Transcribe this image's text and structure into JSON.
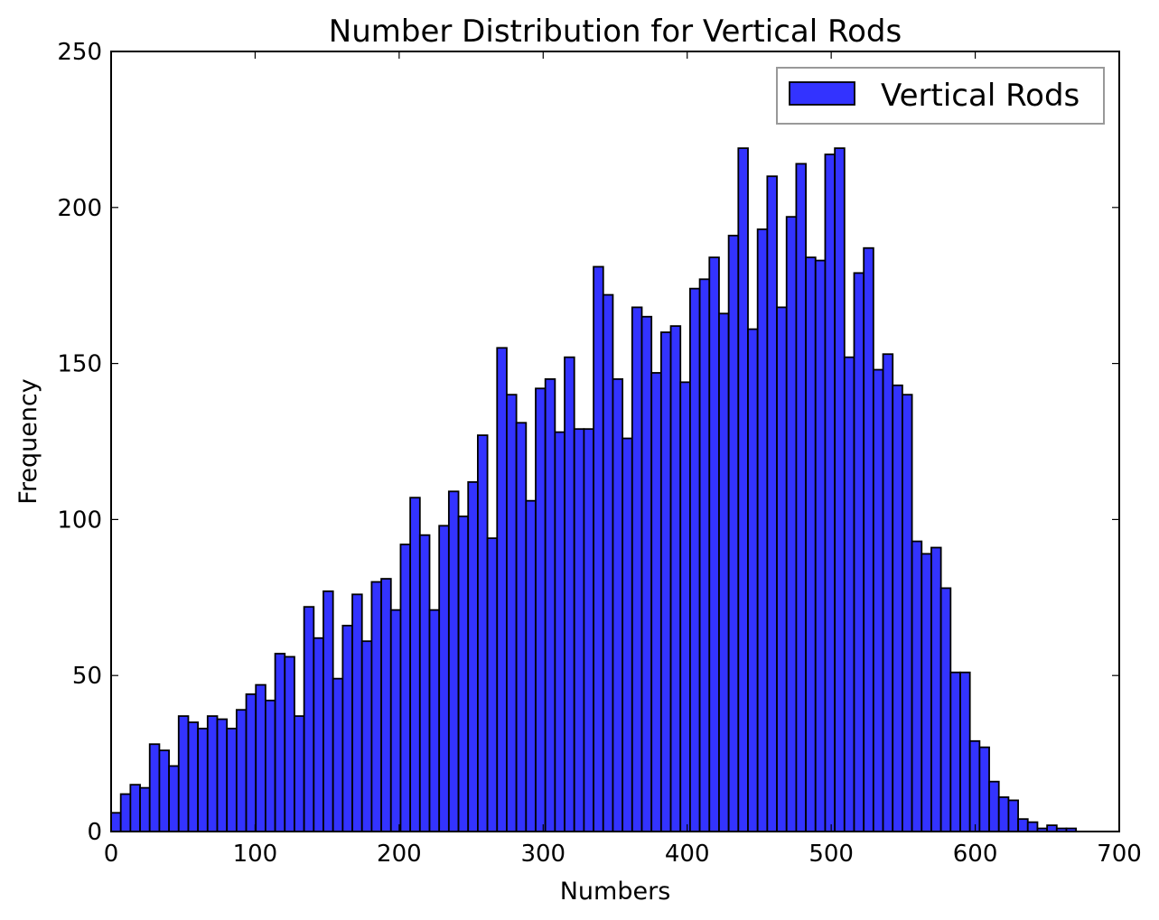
{
  "chart_data": {
    "type": "bar",
    "title": "Number Distribution for Vertical Rods",
    "xlabel": "Numbers",
    "ylabel": "Frequency",
    "xlim": [
      0,
      700
    ],
    "ylim": [
      0,
      250
    ],
    "xticks": [
      0,
      100,
      200,
      300,
      400,
      500,
      600,
      700
    ],
    "yticks": [
      0,
      50,
      100,
      150,
      200,
      250
    ],
    "grid": false,
    "legend": {
      "position": "top-right",
      "entries": [
        "Vertical Rods"
      ]
    },
    "bin_start": 0,
    "bin_width": 6.7,
    "series": [
      {
        "name": "Vertical Rods",
        "color": "#3333ff",
        "edge_color": "#000000",
        "values": [
          6,
          12,
          15,
          14,
          28,
          26,
          21,
          37,
          35,
          33,
          37,
          36,
          33,
          39,
          44,
          47,
          42,
          57,
          56,
          37,
          72,
          62,
          77,
          49,
          66,
          76,
          61,
          80,
          81,
          71,
          92,
          107,
          95,
          71,
          98,
          109,
          101,
          112,
          127,
          94,
          155,
          140,
          131,
          106,
          142,
          145,
          128,
          152,
          129,
          129,
          181,
          172,
          145,
          126,
          168,
          165,
          147,
          160,
          162,
          144,
          174,
          177,
          184,
          166,
          191,
          219,
          161,
          193,
          210,
          168,
          197,
          214,
          184,
          183,
          217,
          219,
          152,
          179,
          187,
          148,
          153,
          143,
          140,
          93,
          89,
          91,
          78,
          51,
          51,
          29,
          27,
          16,
          11,
          10,
          4,
          3,
          1,
          2,
          1,
          1
        ]
      }
    ]
  }
}
